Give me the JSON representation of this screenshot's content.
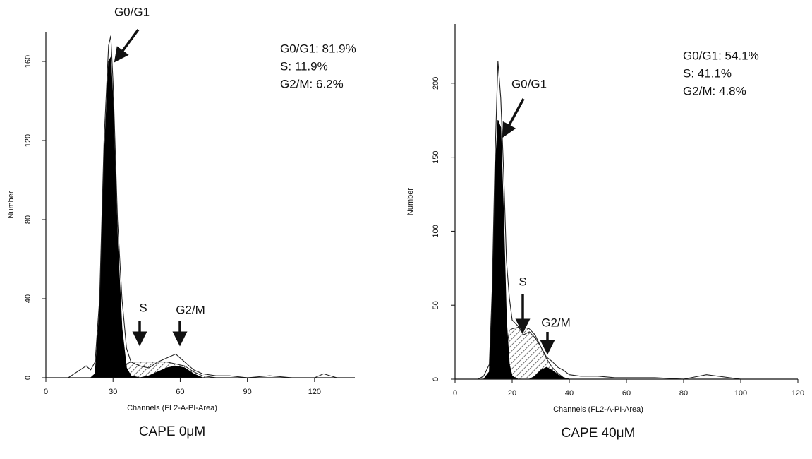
{
  "chart_data": [
    {
      "type": "area",
      "caption": "CAPE 0μM",
      "xlabel": "Channels (FL2-A-PI-Area)",
      "ylabel": "Number",
      "annotations": [
        "G0/G1: 81.9%",
        "S: 11.9%",
        "G2/M: 6.2%"
      ],
      "phase_labels": [
        "G0/G1",
        "S",
        "G2/M"
      ],
      "x": [
        10,
        14,
        18,
        20,
        22,
        24,
        26,
        28,
        29,
        30,
        32,
        34,
        36,
        38,
        42,
        46,
        50,
        54,
        58,
        62,
        66,
        70,
        76,
        82,
        90,
        100,
        110,
        120,
        124,
        130
      ],
      "xlim": [
        0,
        138
      ],
      "xticks": [
        0,
        30,
        60,
        90,
        120
      ],
      "ylim": [
        0,
        175
      ],
      "yticks": [
        0,
        40,
        80,
        120,
        160
      ],
      "series": [
        {
          "color": "#222",
          "fill": "hatch",
          "values": [
            0,
            0,
            0,
            0,
            0,
            0,
            0,
            0,
            0,
            0,
            0,
            5,
            7,
            8,
            8,
            8,
            8,
            8,
            7,
            6,
            3,
            1,
            0,
            0,
            0,
            0,
            0,
            0,
            0,
            0
          ]
        },
        {
          "color": "#000",
          "fill": "solid",
          "values": [
            0,
            0,
            0,
            0,
            2,
            35,
            110,
            160,
            162,
            140,
            70,
            25,
            5,
            1,
            0,
            0,
            0,
            0,
            0,
            0,
            0,
            0,
            0,
            0,
            0,
            0,
            0,
            0,
            0,
            0
          ]
        },
        {
          "color": "#000",
          "fill": "solid",
          "values": [
            0,
            0,
            0,
            0,
            0,
            0,
            0,
            0,
            0,
            0,
            0,
            0,
            0,
            0,
            0,
            1,
            3,
            5,
            6,
            5,
            2,
            0,
            0,
            0,
            0,
            0,
            0,
            0,
            0,
            0
          ]
        },
        {
          "color": "#222",
          "fill": "none",
          "values": [
            0,
            3,
            6,
            4,
            8,
            40,
            120,
            168,
            173,
            150,
            80,
            40,
            15,
            8,
            6,
            5,
            8,
            10,
            12,
            8,
            4,
            2,
            1,
            1,
            0,
            1,
            0,
            0,
            2,
            0
          ]
        }
      ]
    },
    {
      "type": "area",
      "caption": "CAPE 40μM",
      "xlabel": "Channels (FL2-A-PI-Area)",
      "ylabel": "Number",
      "annotations": [
        "G0/G1: 54.1%",
        "S: 41.1%",
        "G2/M: 4.8%"
      ],
      "phase_labels": [
        "G0/G1",
        "S",
        "G2/M"
      ],
      "x": [
        8,
        10,
        12,
        13,
        14,
        15,
        16,
        17,
        18,
        19,
        20,
        22,
        24,
        26,
        28,
        30,
        32,
        34,
        36,
        38,
        40,
        44,
        50,
        56,
        60,
        70,
        80,
        88,
        100,
        110,
        118
      ],
      "xlim": [
        0,
        120
      ],
      "xticks": [
        0,
        20,
        40,
        60,
        80,
        100,
        120
      ],
      "ylim": [
        0,
        240
      ],
      "yticks": [
        0,
        50,
        100,
        150,
        200
      ],
      "series": [
        {
          "color": "#222",
          "fill": "hatch",
          "values": [
            0,
            0,
            0,
            0,
            0,
            0,
            0,
            10,
            20,
            33,
            34,
            35,
            35,
            34,
            30,
            22,
            14,
            8,
            4,
            1,
            0,
            0,
            0,
            0,
            0,
            0,
            0,
            0,
            0,
            0,
            0
          ]
        },
        {
          "color": "#000",
          "fill": "solid",
          "values": [
            0,
            0,
            5,
            50,
            140,
            175,
            170,
            110,
            40,
            10,
            2,
            0,
            0,
            0,
            0,
            0,
            0,
            0,
            0,
            0,
            0,
            0,
            0,
            0,
            0,
            0,
            0,
            0,
            0,
            0,
            0
          ]
        },
        {
          "color": "#000",
          "fill": "solid",
          "values": [
            0,
            0,
            0,
            0,
            0,
            0,
            0,
            0,
            0,
            0,
            0,
            0,
            0,
            0,
            2,
            6,
            8,
            6,
            3,
            1,
            0,
            0,
            0,
            0,
            0,
            0,
            0,
            0,
            0,
            0,
            0
          ]
        },
        {
          "color": "#222",
          "fill": "none",
          "values": [
            0,
            2,
            10,
            60,
            150,
            215,
            190,
            140,
            80,
            55,
            40,
            36,
            30,
            32,
            28,
            22,
            15,
            12,
            8,
            6,
            3,
            2,
            2,
            1,
            1,
            1,
            0,
            3,
            0,
            0,
            0
          ]
        }
      ]
    }
  ]
}
